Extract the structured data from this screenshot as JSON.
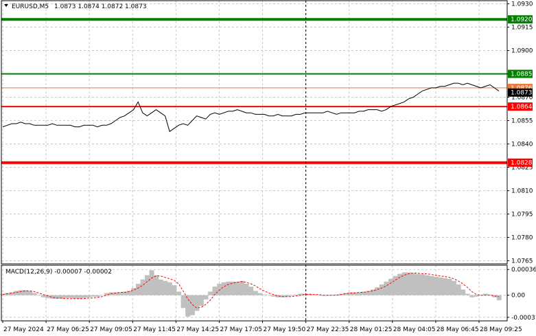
{
  "header": {
    "symbol_tf": "EURUSD,M5",
    "ohlc": "1.0873 1.0874 1.0872 1.0873"
  },
  "colors": {
    "price_line": "#000000",
    "grid": "#c8c8c8",
    "resistance_green": "#008000",
    "red_level": "#ff0000",
    "orange_level": "#e87c3e",
    "macd_hist": "#c0c0c0",
    "macd_signal": "#ff0000",
    "current_price_bg": "#000000"
  },
  "chart_data": [
    {
      "type": "line",
      "title": "EURUSD,M5",
      "ylim": [
        1.0763,
        1.0932
      ],
      "y_ticks": [
        "1.0930",
        "1.0915",
        "1.0900",
        "1.0885",
        "1.0870",
        "1.0855",
        "1.0840",
        "1.0825",
        "1.0810",
        "1.0795",
        "1.0780",
        "1.0765"
      ],
      "x_ticks": [
        "27 May 2024",
        "27 May 06:25",
        "27 May 09:05",
        "27 May 11:45",
        "27 May 14:25",
        "27 May 17:05",
        "27 May 19:50",
        "27 May 22:35",
        "28 May 01:25",
        "28 May 04:05",
        "28 May 06:45",
        "28 May 09:25"
      ],
      "levels": [
        {
          "value": 1.092,
          "label": "1.0920",
          "color": "#008000",
          "style": "thick"
        },
        {
          "value": 1.0885,
          "label": "1.0885",
          "color": "#008000",
          "style": "normal"
        },
        {
          "value": 1.0876,
          "label": "1.0876",
          "color": "#e87c3e",
          "style": "thin"
        },
        {
          "value": 1.0864,
          "label": "1.0864",
          "color": "#ff0000",
          "style": "normal"
        },
        {
          "value": 1.0828,
          "label": "1.0828",
          "color": "#ff0000",
          "style": "thick"
        }
      ],
      "current_price": {
        "value": 1.0873,
        "label": "1.0873"
      },
      "vline_category_index": 7.0,
      "series": [
        {
          "values": [
            1.0851,
            1.0852,
            1.0853,
            1.0853,
            1.0854,
            1.0853,
            1.0853,
            1.0852,
            1.0852,
            1.0852,
            1.0852,
            1.0853,
            1.0852,
            1.0852,
            1.0852,
            1.0852,
            1.0851,
            1.0851,
            1.0852,
            1.0852,
            1.0852,
            1.0851,
            1.0852,
            1.0852,
            1.0853,
            1.0855,
            1.0857,
            1.0858,
            1.086,
            1.0862,
            1.0867,
            1.086,
            1.0858,
            1.086,
            1.0862,
            1.086,
            1.0858,
            1.0848,
            1.085,
            1.0852,
            1.0853,
            1.0852,
            1.0855,
            1.0858,
            1.0857,
            1.0856,
            1.0859,
            1.086,
            1.0859,
            1.086,
            1.0861,
            1.0861,
            1.0862,
            1.0861,
            1.086,
            1.086,
            1.0859,
            1.0859,
            1.0859,
            1.0858,
            1.0858,
            1.0859,
            1.0858,
            1.0858,
            1.0858,
            1.0859,
            1.0859,
            1.086,
            1.086,
            1.086,
            1.086,
            1.086,
            1.0861,
            1.086,
            1.0859,
            1.086,
            1.086,
            1.086,
            1.086,
            1.0861,
            1.0861,
            1.0862,
            1.0862,
            1.0862,
            1.0861,
            1.0862,
            1.0864,
            1.0865,
            1.0866,
            1.0867,
            1.0869,
            1.087,
            1.0872,
            1.0874,
            1.0875,
            1.0876,
            1.0876,
            1.0877,
            1.0877,
            1.0878,
            1.0879,
            1.0879,
            1.0878,
            1.0879,
            1.0878,
            1.0877,
            1.0876,
            1.0877,
            1.0878,
            1.0876,
            1.0874
          ]
        }
      ]
    },
    {
      "type": "bar",
      "title": "MACD(12,26,9) -0.00007 -0.00002",
      "ylim": [
        -0.00036,
        0.00042
      ],
      "y_ticks": [
        "0.00036",
        "0.00",
        "-0.00031"
      ],
      "series": [
        {
          "name": "MACD",
          "values": [
            2e-05,
            3e-05,
            4e-05,
            6e-05,
            7e-05,
            7e-05,
            6e-05,
            3e-05,
            0.0,
            -3e-05,
            -4e-05,
            -5e-05,
            -5e-05,
            -5e-05,
            -4e-05,
            -4e-05,
            -5e-05,
            -5e-05,
            -4e-05,
            -3e-05,
            -2e-05,
            -2e-05,
            0.0,
            3e-05,
            4e-05,
            4e-05,
            4e-05,
            5e-05,
            6e-05,
            0.0001,
            0.00016,
            0.00022,
            0.00028,
            0.00035,
            0.00028,
            0.00022,
            0.0002,
            0.00018,
            0.00014,
            5e-05,
            -0.00018,
            -0.0003,
            -0.00028,
            -0.00022,
            -0.00015,
            -6e-05,
            5e-05,
            0.00012,
            0.00016,
            0.00018,
            0.00019,
            0.00019,
            0.00019,
            0.0002,
            0.00016,
            0.00012,
            6e-05,
            3e-05,
            1e-05,
            0.0,
            -2e-05,
            -3e-05,
            -3e-05,
            -2e-05,
            -1e-05,
            1e-05,
            2e-05,
            2e-05,
            2e-05,
            1e-05,
            0.0,
            -1e-05,
            -1e-05,
            0.0,
            1e-05,
            2e-05,
            3e-05,
            4e-05,
            4e-05,
            4e-05,
            5e-05,
            6e-05,
            8e-05,
            0.00011,
            0.00015,
            0.00019,
            0.00023,
            0.00027,
            0.0003,
            0.00032,
            0.00032,
            0.00031,
            0.0003,
            0.00029,
            0.00028,
            0.00027,
            0.00026,
            0.00025,
            0.00024,
            0.00023,
            0.0002,
            0.00015,
            8e-05,
            2e-05,
            -3e-05,
            -2e-05,
            0.0,
            2e-05,
            1e-05,
            -3e-05,
            -7e-05
          ]
        },
        {
          "name": "Signal",
          "values": [
            1e-05,
            2e-05,
            3e-05,
            4e-05,
            5e-05,
            6e-05,
            6e-05,
            5e-05,
            3e-05,
            1e-05,
            -1e-05,
            -3e-05,
            -4e-05,
            -4e-05,
            -5e-05,
            -5e-05,
            -5e-05,
            -5e-05,
            -5e-05,
            -4e-05,
            -4e-05,
            -3e-05,
            -2e-05,
            0.0,
            2e-05,
            3e-05,
            4e-05,
            4e-05,
            5e-05,
            7e-05,
            0.0001,
            0.00014,
            0.00019,
            0.00024,
            0.00027,
            0.00027,
            0.00025,
            0.00023,
            0.00021,
            0.00016,
            6e-05,
            -5e-05,
            -0.00013,
            -0.00018,
            -0.00017,
            -0.00013,
            -7e-05,
            1e-05,
            7e-05,
            0.00012,
            0.00015,
            0.00017,
            0.00018,
            0.00019,
            0.00018,
            0.00016,
            0.00013,
            9e-05,
            6e-05,
            3e-05,
            1e-05,
            -1e-05,
            -2e-05,
            -2e-05,
            -2e-05,
            -1e-05,
            0.0,
            1e-05,
            1e-05,
            1e-05,
            1e-05,
            0.0,
            0.0,
            0.0,
            0.0,
            1e-05,
            2e-05,
            3e-05,
            3e-05,
            4e-05,
            4e-05,
            5e-05,
            6e-05,
            8e-05,
            0.0001,
            0.00013,
            0.00017,
            0.00021,
            0.00025,
            0.00028,
            0.0003,
            0.00031,
            0.00031,
            0.0003,
            0.0003,
            0.00029,
            0.00028,
            0.00027,
            0.00026,
            0.00025,
            0.00023,
            0.0002,
            0.00016,
            0.00011,
            5e-05,
            1e-05,
            0.0,
            0.0,
            0.0,
            -1e-05,
            -2e-05
          ]
        }
      ]
    }
  ]
}
